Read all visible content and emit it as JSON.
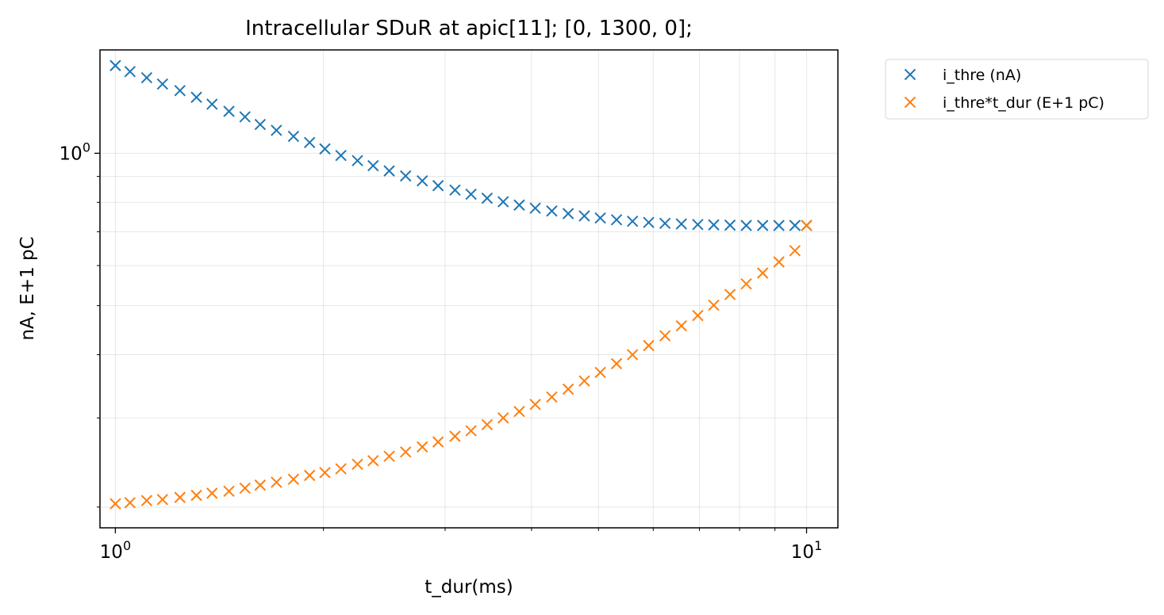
{
  "chart_data": {
    "type": "scatter",
    "title": "Intracellular SDuR at apic[11]; [0, 1300, 0];",
    "xlabel": "t_dur(ms)",
    "ylabel": "nA, E+1 pC",
    "xscale": "log",
    "yscale": "log",
    "xlim": [
      0.95,
      11.1
    ],
    "ylim": [
      0.182,
      1.6
    ],
    "xticks": [
      {
        "value": 1,
        "base": "10",
        "exp": "0"
      },
      {
        "value": 10,
        "base": "10",
        "exp": "1"
      }
    ],
    "yticks": [
      {
        "value": 1,
        "base": "10",
        "exp": "0"
      }
    ],
    "grid": true,
    "legend_position": "outside-top-right",
    "series": [
      {
        "name": "i_thre (nA)",
        "color": "#1f77b4",
        "marker": "x",
        "x": [
          1.0,
          1.05,
          1.11,
          1.17,
          1.24,
          1.31,
          1.38,
          1.46,
          1.54,
          1.62,
          1.71,
          1.81,
          1.91,
          2.01,
          2.12,
          2.24,
          2.36,
          2.49,
          2.63,
          2.78,
          2.93,
          3.1,
          3.27,
          3.45,
          3.64,
          3.84,
          4.05,
          4.28,
          4.52,
          4.77,
          5.03,
          5.31,
          5.6,
          5.91,
          6.24,
          6.59,
          6.96,
          7.34,
          7.75,
          8.18,
          8.64,
          9.12,
          9.62,
          10.0
        ],
        "y": [
          1.49,
          1.45,
          1.41,
          1.37,
          1.33,
          1.29,
          1.25,
          1.21,
          1.18,
          1.14,
          1.11,
          1.08,
          1.05,
          1.02,
          0.99,
          0.967,
          0.945,
          0.923,
          0.902,
          0.882,
          0.863,
          0.846,
          0.83,
          0.815,
          0.802,
          0.79,
          0.779,
          0.769,
          0.76,
          0.752,
          0.745,
          0.739,
          0.734,
          0.73,
          0.727,
          0.725,
          0.723,
          0.722,
          0.721,
          0.72,
          0.72,
          0.72,
          0.72,
          0.72
        ]
      },
      {
        "name": "i_thre*t_dur (E+1 pC)",
        "color": "#ff7f0e",
        "marker": "x",
        "x": [
          1.0,
          1.05,
          1.11,
          1.17,
          1.24,
          1.31,
          1.38,
          1.46,
          1.54,
          1.62,
          1.71,
          1.81,
          1.91,
          2.01,
          2.12,
          2.24,
          2.36,
          2.49,
          2.63,
          2.78,
          2.93,
          3.1,
          3.27,
          3.45,
          3.64,
          3.84,
          4.05,
          4.28,
          4.52,
          4.77,
          5.03,
          5.31,
          5.6,
          5.91,
          6.24,
          6.59,
          6.96,
          7.34,
          7.75,
          8.18,
          8.64,
          9.12,
          9.62,
          10.0
        ],
        "y": [
          0.203,
          0.204,
          0.206,
          0.207,
          0.209,
          0.211,
          0.213,
          0.215,
          0.218,
          0.221,
          0.224,
          0.227,
          0.231,
          0.234,
          0.238,
          0.243,
          0.247,
          0.252,
          0.257,
          0.263,
          0.269,
          0.276,
          0.283,
          0.291,
          0.3,
          0.309,
          0.319,
          0.33,
          0.342,
          0.355,
          0.369,
          0.384,
          0.4,
          0.417,
          0.436,
          0.456,
          0.478,
          0.501,
          0.526,
          0.552,
          0.58,
          0.61,
          0.642,
          0.72
        ]
      }
    ]
  }
}
